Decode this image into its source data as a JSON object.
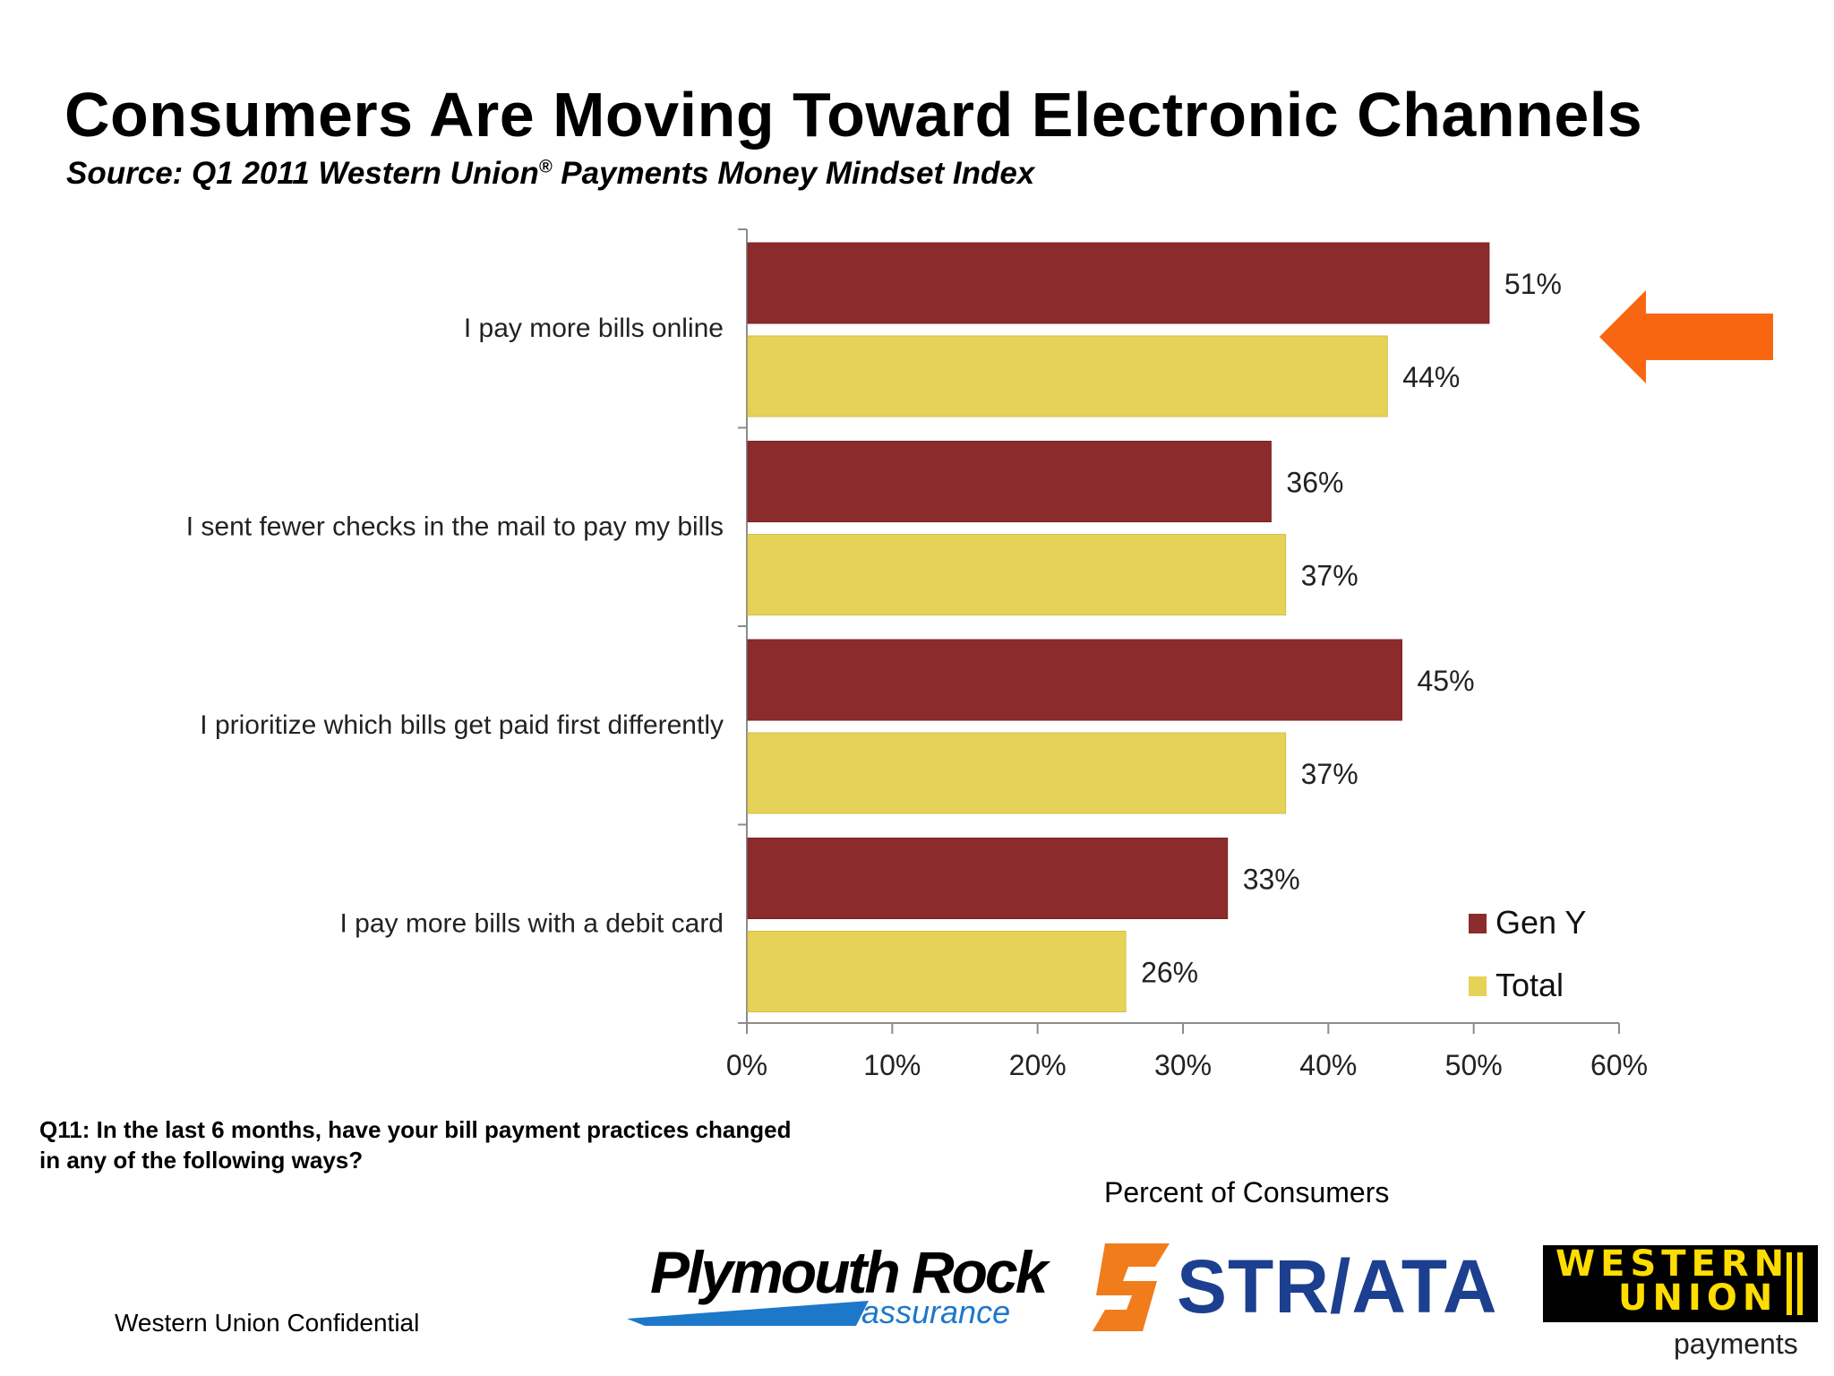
{
  "slide": {
    "title": "Consumers Are Moving Toward Electronic Channels",
    "subtitle_pre": "Source: Q1 2011 Western Union",
    "subtitle_reg": "®",
    "subtitle_post": " Payments Money Mindset Index",
    "question": "Q11: In the last 6 months, have your bill payment practices changed in any of the following ways?",
    "footer": "Western Union Confidential"
  },
  "logos": {
    "plymouth_main": "Plymouth Rock",
    "plymouth_sub": "assurance",
    "striata": "STR/ATA",
    "wu_line1": "WESTERN",
    "wu_line2": "UNION",
    "wu_sub": "payments"
  },
  "colors": {
    "gen_y": "#8b2b2b",
    "total": "#e6d257",
    "arrow": "#f96611",
    "axis": "#8c8c8c"
  },
  "chart_data": {
    "type": "bar",
    "orientation": "horizontal",
    "categories": [
      "I pay more bills online",
      "I sent fewer checks in the mail to pay my bills",
      "I prioritize which bills get paid first differently",
      "I pay more bills with a debit card"
    ],
    "series": [
      {
        "name": "Gen Y",
        "values": [
          51,
          36,
          45,
          33
        ],
        "labels": [
          "51%",
          "36%",
          "45%",
          "33%"
        ]
      },
      {
        "name": "Total",
        "values": [
          44,
          37,
          37,
          26
        ],
        "labels": [
          "44%",
          "37%",
          "37%",
          "26%"
        ]
      }
    ],
    "xlim": [
      0,
      60
    ],
    "xticks": [
      "0%",
      "10%",
      "20%",
      "30%",
      "40%",
      "50%",
      "60%"
    ],
    "xlabel": "Percent of Consumers",
    "legend_position": "bottom-right",
    "grid": false
  }
}
